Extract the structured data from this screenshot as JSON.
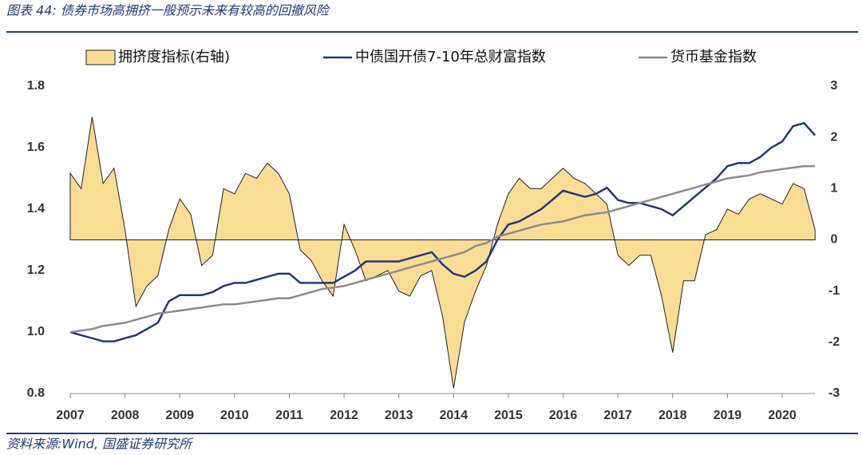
{
  "chart_data": {
    "type": "combo",
    "title": "图表 44: 债券市场高拥挤一般预示未来有较高的回撤风险",
    "source": "资料来源:Wind, 国盛证券研究所",
    "x": [
      2007.0,
      2007.2,
      2007.4,
      2007.6,
      2007.8,
      2008.0,
      2008.2,
      2008.4,
      2008.6,
      2008.8,
      2009.0,
      2009.2,
      2009.4,
      2009.6,
      2009.8,
      2010.0,
      2010.2,
      2010.4,
      2010.6,
      2010.8,
      2011.0,
      2011.2,
      2011.4,
      2011.6,
      2011.8,
      2012.0,
      2012.2,
      2012.4,
      2012.6,
      2012.8,
      2013.0,
      2013.2,
      2013.4,
      2013.6,
      2013.8,
      2014.0,
      2014.2,
      2014.4,
      2014.6,
      2014.8,
      2015.0,
      2015.2,
      2015.4,
      2015.6,
      2015.8,
      2016.0,
      2016.2,
      2016.4,
      2016.6,
      2016.8,
      2017.0,
      2017.2,
      2017.4,
      2017.6,
      2017.8,
      2018.0,
      2018.2,
      2018.4,
      2018.6,
      2018.8,
      2019.0,
      2019.2,
      2019.4,
      2019.6,
      2019.8,
      2020.0,
      2020.2,
      2020.4,
      2020.6
    ],
    "series": [
      {
        "name": "拥挤度指标(右轴)",
        "type": "area",
        "axis": "y2",
        "color": "#fbdc95",
        "values": [
          1.3,
          1.0,
          2.4,
          1.1,
          1.4,
          0.2,
          -1.3,
          -0.9,
          -0.7,
          0.2,
          0.8,
          0.5,
          -0.5,
          -0.3,
          1.0,
          0.9,
          1.3,
          1.2,
          1.5,
          1.3,
          0.9,
          -0.2,
          -0.4,
          -0.8,
          -1.1,
          0.3,
          -0.2,
          -0.8,
          -0.7,
          -0.6,
          -1.0,
          -1.1,
          -0.7,
          -0.6,
          -1.5,
          -2.9,
          -1.6,
          -1.0,
          -0.5,
          0.3,
          0.9,
          1.2,
          1.0,
          1.0,
          1.2,
          1.4,
          1.2,
          1.1,
          0.9,
          0.7,
          -0.3,
          -0.5,
          -0.3,
          -0.3,
          -1.1,
          -2.2,
          -0.8,
          -0.8,
          0.1,
          0.2,
          0.6,
          0.5,
          0.8,
          0.9,
          0.8,
          0.7,
          1.1,
          1.0,
          0.2
        ]
      },
      {
        "name": "中债国开债7-10年总财富指数",
        "type": "line",
        "axis": "y",
        "color": "#1f3a7a",
        "values": [
          1.0,
          0.99,
          0.98,
          0.97,
          0.97,
          0.98,
          0.99,
          1.01,
          1.03,
          1.1,
          1.12,
          1.12,
          1.12,
          1.13,
          1.15,
          1.16,
          1.16,
          1.17,
          1.18,
          1.19,
          1.19,
          1.16,
          1.16,
          1.16,
          1.16,
          1.18,
          1.2,
          1.23,
          1.23,
          1.23,
          1.23,
          1.24,
          1.25,
          1.26,
          1.22,
          1.19,
          1.18,
          1.2,
          1.23,
          1.3,
          1.35,
          1.36,
          1.38,
          1.4,
          1.43,
          1.46,
          1.45,
          1.44,
          1.45,
          1.47,
          1.43,
          1.42,
          1.42,
          1.41,
          1.4,
          1.38,
          1.41,
          1.44,
          1.47,
          1.5,
          1.54,
          1.55,
          1.55,
          1.57,
          1.6,
          1.62,
          1.67,
          1.68,
          1.64
        ]
      },
      {
        "name": "货币基金指数",
        "type": "line",
        "axis": "y",
        "color": "#8c8c8c",
        "values": [
          1.0,
          1.005,
          1.01,
          1.02,
          1.025,
          1.03,
          1.04,
          1.05,
          1.06,
          1.065,
          1.07,
          1.075,
          1.08,
          1.085,
          1.09,
          1.09,
          1.095,
          1.1,
          1.105,
          1.11,
          1.11,
          1.12,
          1.13,
          1.14,
          1.145,
          1.15,
          1.16,
          1.17,
          1.18,
          1.19,
          1.2,
          1.21,
          1.22,
          1.23,
          1.24,
          1.25,
          1.26,
          1.28,
          1.29,
          1.31,
          1.32,
          1.33,
          1.34,
          1.35,
          1.355,
          1.36,
          1.37,
          1.38,
          1.385,
          1.39,
          1.4,
          1.41,
          1.42,
          1.43,
          1.44,
          1.45,
          1.46,
          1.47,
          1.48,
          1.49,
          1.5,
          1.505,
          1.51,
          1.52,
          1.525,
          1.53,
          1.535,
          1.54,
          1.54
        ]
      }
    ],
    "xlim": [
      2007,
      2020.6
    ],
    "xticks": [
      2007,
      2008,
      2009,
      2010,
      2011,
      2012,
      2013,
      2014,
      2015,
      2016,
      2017,
      2018,
      2019,
      2020
    ],
    "ylim": [
      0.8,
      1.8
    ],
    "yticks": [
      0.8,
      1.2,
      1.4,
      1.6,
      1.8,
      {
        "value": 1,
        "label": "1.0"
      }
    ],
    "y2lim": [
      -3,
      3
    ],
    "y2ticks": [
      -3,
      -2,
      -1,
      0,
      1,
      2,
      3
    ]
  }
}
